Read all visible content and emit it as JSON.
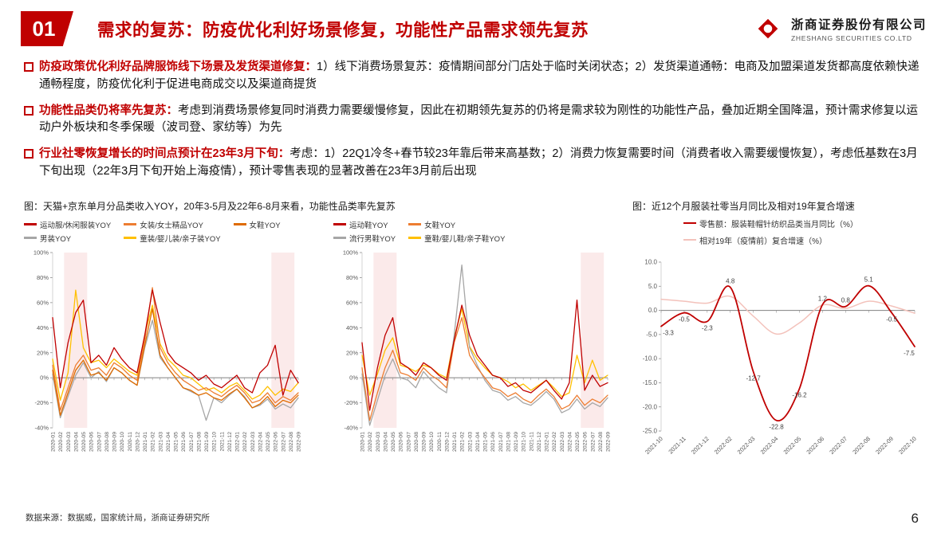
{
  "header": {
    "section_number": "01",
    "title": "需求的复苏：防疫优化利好场景修复，功能性产品需求领先复苏",
    "logo_cn": "浙商证券股份有限公司",
    "logo_en": "ZHESHANG SECURITIES CO.LTD"
  },
  "bullets": [
    {
      "lead": "防疫政策优化利好品牌服饰线下场景及发货渠道修复：",
      "body": "1）线下消费场景复苏：疫情期间部分门店处于临时关闭状态；2）发货渠道通畅：电商及加盟渠道发货都高度依赖快递通畅程度，防疫优化利于促进电商成交以及渠道商提货"
    },
    {
      "lead": "功能性品类仍将率先复苏：",
      "body": "考虑到消费场景修复同时消费力需要缓慢修复，因此在初期领先复苏的仍将是需求较为刚性的功能性产品，叠加近期全国降温，预计需求修复以运动户外板块和冬季保暖（波司登、家纺等）为先"
    },
    {
      "lead": "行业社零恢复增长的时间点预计在23年3月下旬：",
      "body": "考虑：1）22Q1冷冬+春节较23年靠后带来高基数；2）消费力恢复需要时间（消费者收入需要缓慢恢复），考虑低基数在3月下旬出现（22年3月下旬开始上海疫情），预计零售表现的显著改善在23年3月前后出现"
    }
  ],
  "figures": {
    "left": {
      "caption": "图：天猫+京东单月分品类收入YOY，20年3-5月及22年6-8月来看，功能性品类率先复苏"
    },
    "right": {
      "caption": "图：近12个月服装社零当月同比及相对19年复合增速"
    }
  },
  "footer": {
    "source": "数据来源：数据威，国家统计局，浙商证券研究所",
    "page": "6"
  },
  "chart_data": [
    {
      "type": "line",
      "name": "apparel-yoy-chart",
      "title": "天猫+京东单月分品类收入YOY（服装类）",
      "ylim": [
        -40,
        100
      ],
      "ystep": 20,
      "yfmt": "pct",
      "bands": [
        [
          2,
          4
        ],
        [
          29,
          31
        ]
      ],
      "band_color": "#F9DCDC",
      "categories": [
        "2020-01",
        "2020-02",
        "2020-03",
        "2020-04",
        "2020-05",
        "2020-06",
        "2020-07",
        "2020-08",
        "2020-09",
        "2020-10",
        "2020-11",
        "2020-12",
        "2021-01",
        "2021-02",
        "2021-03",
        "2021-04",
        "2021-05",
        "2021-06",
        "2021-07",
        "2021-08",
        "2021-09",
        "2021-10",
        "2021-11",
        "2021-12",
        "2022-01",
        "2022-02",
        "2022-03",
        "2022-04",
        "2022-05",
        "2022-06",
        "2022-07",
        "2022-08",
        "2022-09"
      ],
      "series": [
        {
          "name": "运动服/休闲服装YOY",
          "color": "#C00000",
          "values": [
            48,
            -8,
            28,
            52,
            62,
            12,
            18,
            10,
            24,
            15,
            8,
            4,
            34,
            70,
            44,
            20,
            12,
            8,
            4,
            -2,
            2,
            -5,
            -8,
            -3,
            2,
            -8,
            -12,
            4,
            10,
            26,
            -14,
            6,
            -4
          ]
        },
        {
          "name": "女装/女士精品YOY",
          "color": "#ED7D31",
          "values": [
            10,
            -26,
            -8,
            10,
            18,
            6,
            8,
            2,
            12,
            8,
            2,
            -2,
            30,
            72,
            24,
            12,
            4,
            -2,
            -6,
            -10,
            -8,
            -12,
            -15,
            -10,
            -6,
            -12,
            -20,
            -18,
            -12,
            -20,
            -15,
            -18,
            -12
          ]
        },
        {
          "name": "女鞋YOY",
          "color": "#DE6B00",
          "values": [
            6,
            -30,
            -12,
            6,
            14,
            2,
            4,
            -2,
            8,
            4,
            -2,
            -6,
            26,
            55,
            18,
            8,
            0,
            -8,
            -10,
            -14,
            -12,
            -16,
            -18,
            -13,
            -9,
            -16,
            -24,
            -21,
            -15,
            -23,
            -18,
            -20,
            -14
          ]
        },
        {
          "name": "男装YOY",
          "color": "#A6A6A6",
          "values": [
            3,
            -32,
            -15,
            2,
            12,
            0,
            5,
            -3,
            8,
            4,
            -2,
            -6,
            24,
            46,
            16,
            8,
            0,
            -8,
            -11,
            -14,
            -34,
            -16,
            -20,
            -14,
            -9,
            -15,
            -24,
            -22,
            -17,
            -25,
            -21,
            -24,
            -16
          ]
        },
        {
          "name": "童装/婴儿装/亲子装YOY",
          "color": "#FFC000",
          "values": [
            15,
            -18,
            4,
            70,
            24,
            12,
            14,
            8,
            15,
            10,
            5,
            2,
            34,
            58,
            27,
            15,
            9,
            2,
            0,
            -5,
            -10,
            -8,
            -12,
            -7,
            -4,
            -10,
            -17,
            -14,
            -7,
            -14,
            -9,
            -11,
            -4
          ]
        }
      ]
    },
    {
      "type": "line",
      "name": "footwear-yoy-chart",
      "title": "天猫+京东单月分品类收入YOY（鞋类）",
      "ylim": [
        -40,
        100
      ],
      "ystep": 20,
      "yfmt": "pct",
      "bands": [
        [
          2,
          4
        ],
        [
          29,
          31
        ]
      ],
      "band_color": "#F9DCDC",
      "categories": [
        "2020-01",
        "2020-02",
        "2020-03",
        "2020-04",
        "2020-05",
        "2020-06",
        "2020-07",
        "2020-08",
        "2020-09",
        "2020-10",
        "2020-11",
        "2020-12",
        "2021-01",
        "2021-02",
        "2021-03",
        "2021-04",
        "2021-05",
        "2021-06",
        "2021-07",
        "2021-08",
        "2021-09",
        "2021-10",
        "2021-11",
        "2021-12",
        "2022-01",
        "2022-02",
        "2022-03",
        "2022-04",
        "2022-05",
        "2022-06",
        "2022-07",
        "2022-08",
        "2022-09"
      ],
      "series": [
        {
          "name": "运动鞋YOY",
          "color": "#C00000",
          "values": [
            28,
            -26,
            8,
            34,
            48,
            12,
            8,
            2,
            12,
            8,
            2,
            -2,
            30,
            58,
            34,
            18,
            10,
            2,
            0,
            -7,
            -4,
            -10,
            -12,
            -7,
            -2,
            -10,
            -17,
            -4,
            62,
            -10,
            2,
            -7,
            -4
          ]
        },
        {
          "name": "女鞋YOY",
          "color": "#ED7D31",
          "values": [
            8,
            -34,
            -12,
            8,
            22,
            4,
            2,
            -2,
            8,
            2,
            -2,
            -8,
            28,
            48,
            18,
            8,
            0,
            -8,
            -10,
            -15,
            -12,
            -17,
            -20,
            -14,
            -9,
            -15,
            -25,
            -22,
            -14,
            -22,
            -17,
            -20,
            -14
          ]
        },
        {
          "name": "流行男鞋YOY",
          "color": "#A6A6A6",
          "values": [
            3,
            -38,
            -18,
            2,
            15,
            0,
            -2,
            -8,
            5,
            -2,
            -8,
            -12,
            34,
            90,
            24,
            10,
            -2,
            -10,
            -12,
            -18,
            -15,
            -20,
            -22,
            -17,
            -11,
            -17,
            -28,
            -25,
            -17,
            -25,
            -20,
            -23,
            -16
          ]
        },
        {
          "name": "童鞋/婴儿鞋/亲子鞋YOY",
          "color": "#FFC000",
          "values": [
            18,
            -14,
            3,
            22,
            32,
            10,
            8,
            5,
            10,
            8,
            3,
            0,
            32,
            55,
            25,
            15,
            8,
            2,
            0,
            -3,
            -8,
            -5,
            -10,
            -6,
            -2,
            -8,
            -15,
            -12,
            18,
            -4,
            14,
            -2,
            2
          ]
        }
      ]
    },
    {
      "type": "line",
      "name": "retail-yoy-chart",
      "title": "近12个月服装社零当月同比及相对19年复合增速",
      "ylim": [
        -25,
        10
      ],
      "ystep": 5,
      "yfmt": "fixed1",
      "smooth": true,
      "categories": [
        "2021-10",
        "2021-11",
        "2021-12",
        "2022-02",
        "2022-03",
        "2022-04",
        "2022-05",
        "2022-06",
        "2022-07",
        "2022-08",
        "2022-09",
        "2022-10"
      ],
      "series": [
        {
          "name": "零售额：服装鞋帽针纺织品类当月同比（%）",
          "color": "#C00000",
          "width": 1.8,
          "point_labels": true,
          "values": [
            -3.3,
            -0.5,
            -2.3,
            4.8,
            -12.7,
            -22.8,
            -16.2,
            1.2,
            0.8,
            5.1,
            -0.5,
            -7.5
          ]
        },
        {
          "name": "相对19年（疫情前）复合增速（%）",
          "color": "#F3C2BB",
          "width": 1.5,
          "values": [
            2.3,
            1.9,
            1.5,
            2.9,
            -1.2,
            -4.9,
            -2.6,
            1.1,
            0.4,
            1.9,
            0.9,
            -0.6
          ]
        }
      ]
    }
  ]
}
